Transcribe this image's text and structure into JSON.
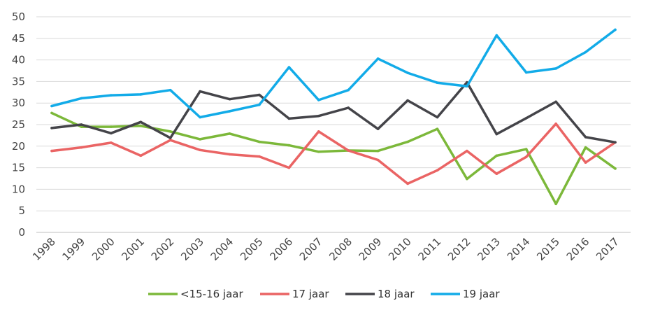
{
  "chart_data": {
    "type": "line",
    "title": "",
    "xlabel": "",
    "ylabel": "",
    "ylim": [
      0,
      50
    ],
    "yticks": [
      "0",
      "5",
      "10",
      "15",
      "20",
      "25",
      "30",
      "35",
      "40",
      "45",
      "50"
    ],
    "categories": [
      "1998",
      "1999",
      "2000",
      "2001",
      "2002",
      "2003",
      "2004",
      "2005",
      "2006",
      "2007",
      "2008",
      "2009",
      "2010",
      "2011",
      "2012",
      "2013",
      "2014",
      "2015",
      "2016",
      "2017"
    ],
    "grid": "horizontal",
    "legend_position": "bottom",
    "series": [
      {
        "name": "<15-16 jaar",
        "color": "#7cb83a",
        "values": [
          27.7,
          24.5,
          24.5,
          24.7,
          23.4,
          21.6,
          22.9,
          21.0,
          20.2,
          18.7,
          19.0,
          18.9,
          21.0,
          24.0,
          12.4,
          17.8,
          19.3,
          6.6,
          19.7,
          14.8
        ]
      },
      {
        "name": "17 jaar",
        "color": "#ea6464",
        "values": [
          18.9,
          19.7,
          20.8,
          17.8,
          21.4,
          19.1,
          18.1,
          17.6,
          15.0,
          23.4,
          19.0,
          16.8,
          11.3,
          14.4,
          18.9,
          13.6,
          17.5,
          25.2,
          16.2,
          20.9
        ]
      },
      {
        "name": "18 jaar",
        "color": "#444449",
        "values": [
          24.2,
          25.0,
          23.0,
          25.6,
          21.9,
          32.7,
          30.9,
          31.9,
          26.4,
          27.0,
          28.9,
          24.0,
          30.6,
          26.7,
          34.8,
          22.8,
          26.5,
          30.3,
          22.1,
          20.9
        ]
      },
      {
        "name": "19 jaar",
        "color": "#12abe8",
        "values": [
          29.3,
          31.1,
          31.8,
          32.0,
          33.0,
          26.7,
          28.1,
          29.6,
          38.3,
          30.7,
          33.0,
          40.3,
          37.0,
          34.7,
          33.9,
          45.7,
          37.1,
          38.0,
          41.8,
          47.0
        ]
      }
    ]
  }
}
